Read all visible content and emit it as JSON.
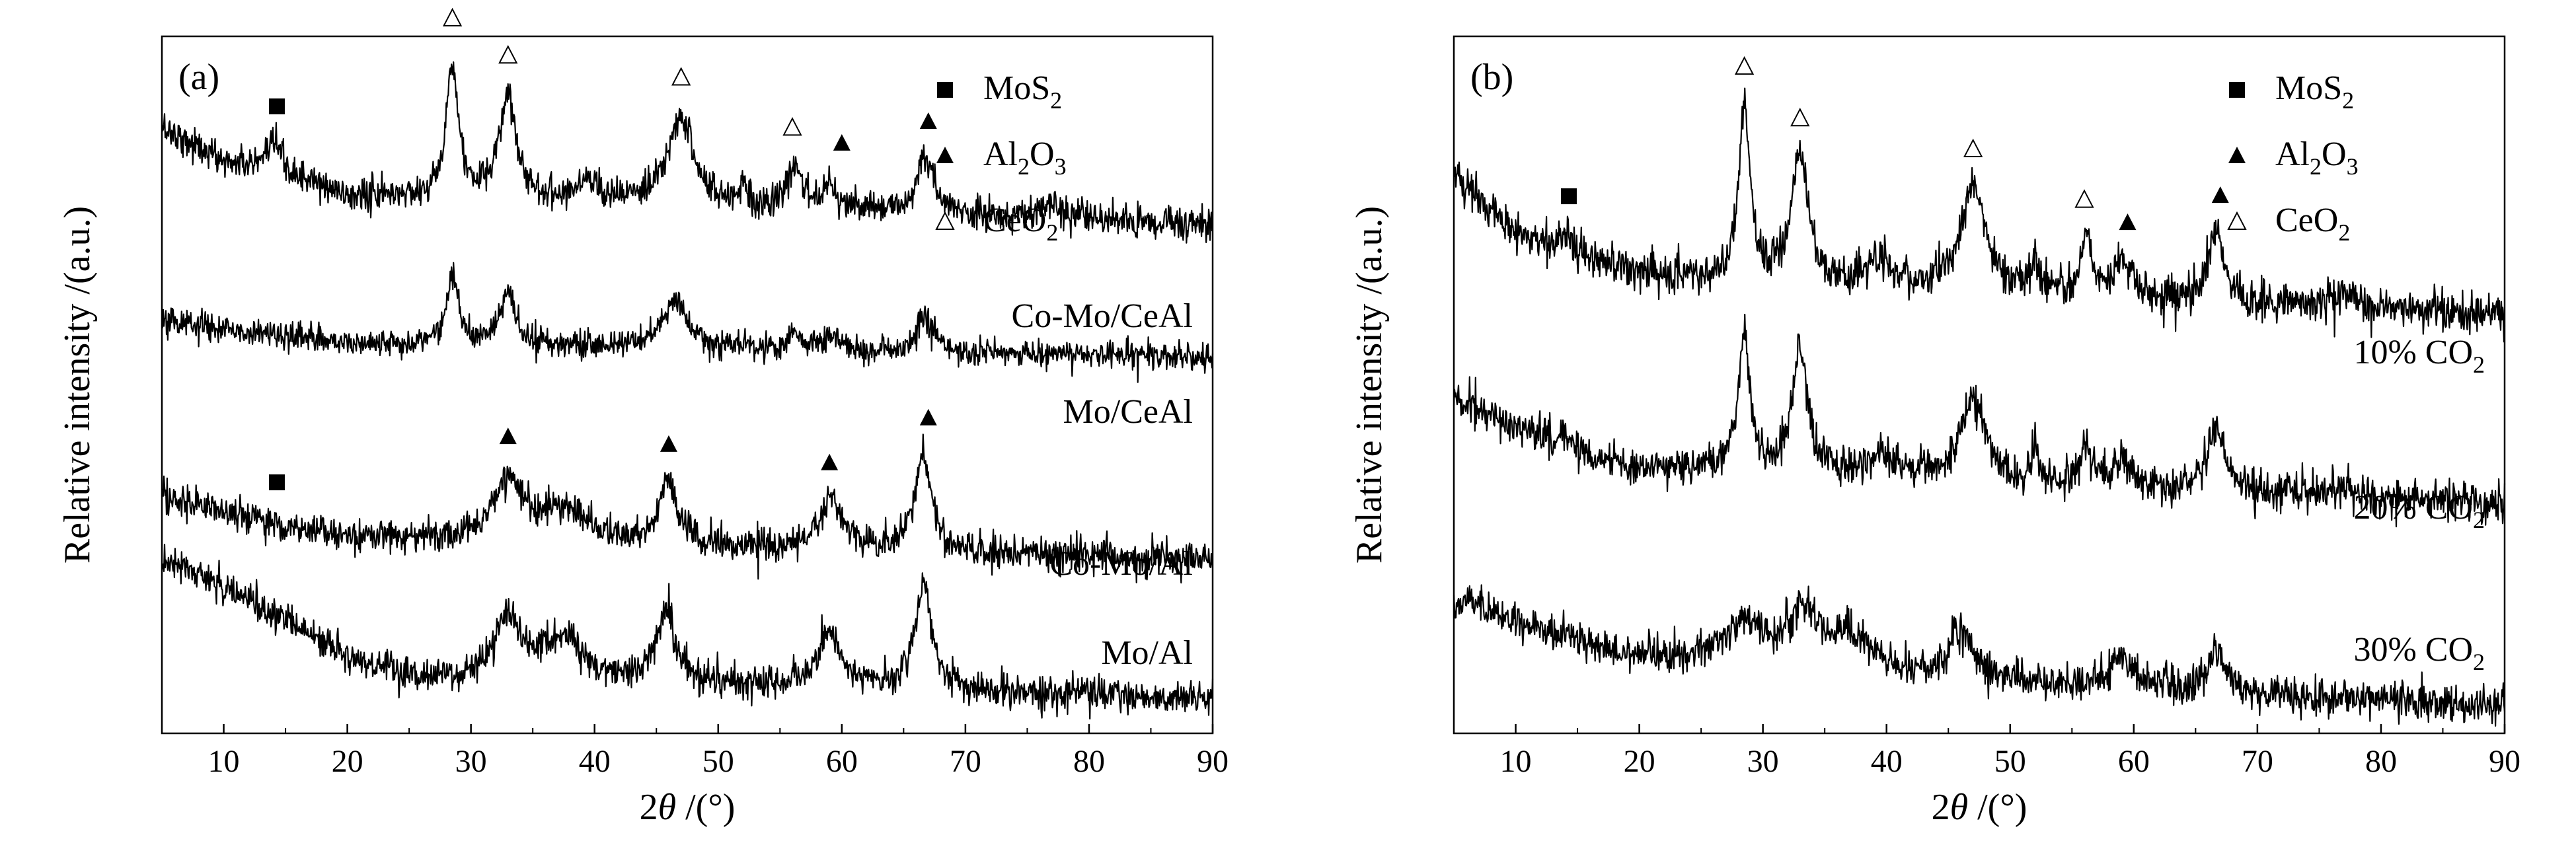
{
  "chart_data": [
    {
      "type": "line",
      "panel_label": "(a)",
      "xlabel": {
        "main": "2",
        "italic": "θ",
        "suffix": " /(°)"
      },
      "ylabel": "Relative intensity /(a.u.)",
      "xlim": [
        5,
        90
      ],
      "xticks": [
        10,
        20,
        30,
        40,
        50,
        60,
        70,
        80,
        90
      ],
      "y_ticks_shown": false,
      "legend": {
        "position": "top-right",
        "entries": [
          {
            "marker": "filled-square",
            "base": "MoS",
            "sub": "2",
            "tail": ""
          },
          {
            "marker": "filled-triangle",
            "base": "Al",
            "sub": "2",
            "tail": "O",
            "sub2": "3"
          },
          {
            "marker": "open-triangle",
            "base": "CeO",
            "sub": "2",
            "tail": ""
          }
        ]
      },
      "series": [
        {
          "name": "Co-Mo/CeAl",
          "label": {
            "base": "Co-Mo/CeAl",
            "sub": ""
          },
          "offset": 0.77,
          "baseline": [
            [
              5,
              0.1
            ],
            [
              10,
              0.05
            ],
            [
              14,
              0.04
            ],
            [
              20,
              0.0
            ],
            [
              25,
              0.0
            ],
            [
              90,
              -0.04
            ]
          ],
          "peaks": [
            [
              14.2,
              0.04,
              0.5
            ],
            [
              28.5,
              0.2,
              0.55
            ],
            [
              33.0,
              0.15,
              0.8
            ],
            [
              39.5,
              0.03,
              1.2
            ],
            [
              47.0,
              0.13,
              1.2
            ],
            [
              52.0,
              0.04,
              0.3
            ],
            [
              56.2,
              0.06,
              0.6
            ],
            [
              59.0,
              0.04,
              0.8
            ],
            [
              66.7,
              0.08,
              0.8
            ],
            [
              77.0,
              0.02,
              1.0
            ]
          ],
          "noise": 0.012,
          "markers": [
            {
              "x": 14.3,
              "type": "filled-square"
            },
            {
              "x": 28.5,
              "type": "open-triangle"
            },
            {
              "x": 33.0,
              "type": "open-triangle"
            },
            {
              "x": 47.0,
              "type": "open-triangle"
            },
            {
              "x": 56.0,
              "type": "open-triangle"
            },
            {
              "x": 60.0,
              "type": "filled-triangle"
            },
            {
              "x": 67.0,
              "type": "filled-triangle"
            }
          ]
        },
        {
          "name": "Mo/CeAl",
          "label": {
            "base": "Mo/CeAl",
            "sub": ""
          },
          "offset": 0.56,
          "baseline": [
            [
              5,
              0.03
            ],
            [
              20,
              0.0
            ],
            [
              90,
              -0.02
            ]
          ],
          "peaks": [
            [
              28.5,
              0.1,
              0.55
            ],
            [
              33.0,
              0.07,
              0.8
            ],
            [
              46.5,
              0.07,
              1.2
            ],
            [
              56.2,
              0.025,
              0.6
            ],
            [
              59.0,
              0.02,
              0.8
            ],
            [
              66.7,
              0.05,
              0.8
            ]
          ],
          "noise": 0.01,
          "markers": []
        },
        {
          "name": "Co-Mo/Al",
          "label": {
            "base": "Co-Mo/Al",
            "sub": ""
          },
          "offset": 0.28,
          "baseline": [
            [
              5,
              0.06
            ],
            [
              12,
              0.03
            ],
            [
              20,
              0.0
            ],
            [
              90,
              -0.03
            ]
          ],
          "peaks": [
            [
              33.0,
              0.09,
              1.5
            ],
            [
              37.5,
              0.05,
              2.0
            ],
            [
              45.9,
              0.09,
              0.9
            ],
            [
              59.2,
              0.07,
              1.1
            ],
            [
              66.6,
              0.14,
              0.8
            ]
          ],
          "noise": 0.012,
          "markers": [
            {
              "x": 14.3,
              "type": "filled-square"
            },
            {
              "x": 33.0,
              "type": "filled-triangle"
            },
            {
              "x": 46.0,
              "type": "filled-triangle"
            },
            {
              "x": 59.0,
              "type": "filled-triangle"
            },
            {
              "x": 67.0,
              "type": "filled-triangle"
            }
          ]
        },
        {
          "name": "Mo/Al",
          "label": {
            "base": "Mo/Al",
            "sub": ""
          },
          "offset": 0.05,
          "baseline": [
            [
              5,
              0.2
            ],
            [
              10,
              0.16
            ],
            [
              15,
              0.11
            ],
            [
              20,
              0.06
            ],
            [
              25,
              0.03
            ],
            [
              30,
              0.02
            ],
            [
              50,
              0.02
            ],
            [
              90,
              0.0
            ]
          ],
          "peaks": [
            [
              33.0,
              0.09,
              1.5
            ],
            [
              37.5,
              0.06,
              2.0
            ],
            [
              45.8,
              0.1,
              0.9
            ],
            [
              59.0,
              0.08,
              1.1
            ],
            [
              66.6,
              0.15,
              0.8
            ]
          ],
          "noise": 0.012,
          "markers": []
        }
      ]
    },
    {
      "type": "line",
      "panel_label": "(b)",
      "xlabel": {
        "main": "2",
        "italic": "θ",
        "suffix": " /(°)"
      },
      "ylabel": "Relative intensity /(a.u.)",
      "xlim": [
        5,
        90
      ],
      "xticks": [
        10,
        20,
        30,
        40,
        50,
        60,
        70,
        80,
        90
      ],
      "y_ticks_shown": false,
      "legend": {
        "position": "top-right",
        "entries": [
          {
            "marker": "filled-square",
            "base": "MoS",
            "sub": "2",
            "tail": ""
          },
          {
            "marker": "filled-triangle",
            "base": "Al",
            "sub": "2",
            "tail": "O",
            "sub2": "3"
          },
          {
            "marker": "open-triangle",
            "base": "CeO",
            "sub": "2",
            "tail": ""
          }
        ]
      },
      "series": [
        {
          "name": "10% CO2",
          "label": {
            "base": "10% CO",
            "sub": "2"
          },
          "offset": 0.64,
          "baseline": [
            [
              5,
              0.16
            ],
            [
              10,
              0.08
            ],
            [
              14,
              0.05
            ],
            [
              20,
              0.02
            ],
            [
              25,
              0.01
            ],
            [
              90,
              -0.04
            ]
          ],
          "peaks": [
            [
              14.2,
              0.03,
              0.5
            ],
            [
              28.5,
              0.25,
              0.55
            ],
            [
              33.0,
              0.18,
              0.8
            ],
            [
              39.5,
              0.04,
              1.2
            ],
            [
              47.0,
              0.15,
              1.2
            ],
            [
              52.0,
              0.05,
              0.3
            ],
            [
              56.2,
              0.08,
              0.6
            ],
            [
              59.0,
              0.05,
              0.8
            ],
            [
              66.7,
              0.1,
              0.8
            ],
            [
              77.0,
              0.025,
              1.0
            ]
          ],
          "noise": 0.014,
          "markers": [
            {
              "x": 14.3,
              "type": "filled-square"
            },
            {
              "x": 28.5,
              "type": "open-triangle"
            },
            {
              "x": 33.0,
              "type": "open-triangle"
            },
            {
              "x": 47.0,
              "type": "open-triangle"
            },
            {
              "x": 56.0,
              "type": "open-triangle"
            },
            {
              "x": 59.5,
              "type": "filled-triangle"
            },
            {
              "x": 67.0,
              "type": "filled-triangle"
            }
          ]
        },
        {
          "name": "20% CO2",
          "label": {
            "base": "20% CO",
            "sub": "2"
          },
          "offset": 0.36,
          "baseline": [
            [
              5,
              0.12
            ],
            [
              10,
              0.08
            ],
            [
              15,
              0.04
            ],
            [
              20,
              0.02
            ],
            [
              90,
              -0.03
            ]
          ],
          "peaks": [
            [
              14.0,
              0.02,
              0.5
            ],
            [
              28.5,
              0.2,
              0.55
            ],
            [
              33.0,
              0.17,
              0.8
            ],
            [
              39.5,
              0.03,
              1.2
            ],
            [
              47.0,
              0.12,
              1.2
            ],
            [
              52.0,
              0.05,
              0.3
            ],
            [
              56.2,
              0.06,
              0.6
            ],
            [
              59.0,
              0.04,
              0.8
            ],
            [
              66.7,
              0.09,
              0.8
            ],
            [
              77.0,
              0.02,
              1.0
            ]
          ],
          "noise": 0.014,
          "markers": []
        },
        {
          "name": "30% CO2",
          "label": {
            "base": "30% CO",
            "sub": "2"
          },
          "offset": 0.06,
          "baseline": [
            [
              5,
              0.13
            ],
            [
              10,
              0.1
            ],
            [
              20,
              0.05
            ],
            [
              30,
              0.03
            ],
            [
              90,
              -0.02
            ]
          ],
          "peaks": [
            [
              28.5,
              0.06,
              2.0
            ],
            [
              33.2,
              0.08,
              1.5
            ],
            [
              37.0,
              0.05,
              2.0
            ],
            [
              46.0,
              0.07,
              1.2
            ],
            [
              59.0,
              0.04,
              1.0
            ],
            [
              66.7,
              0.06,
              0.8
            ]
          ],
          "noise": 0.013,
          "markers": []
        }
      ]
    }
  ]
}
